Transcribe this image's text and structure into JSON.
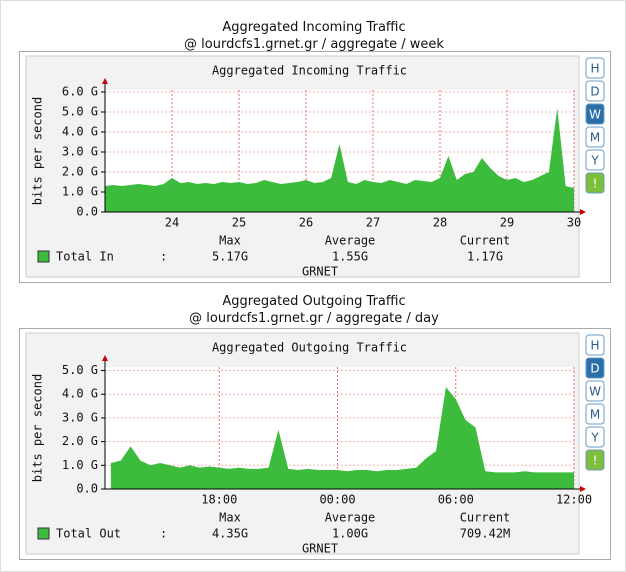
{
  "chart_data": [
    {
      "type": "area",
      "heading": "Aggregated Incoming Traffic",
      "subheading": "@ lourdcfs1.grnet.gr / aggregate / week",
      "title": "Aggregated Incoming Traffic",
      "ylabel": "bits per second",
      "x": [
        23.0,
        23.125,
        23.25,
        23.375,
        23.5,
        23.625,
        23.75,
        23.875,
        24.0,
        24.125,
        24.25,
        24.375,
        24.5,
        24.625,
        24.75,
        24.875,
        25.0,
        25.125,
        25.25,
        25.375,
        25.5,
        25.625,
        25.75,
        25.875,
        26.0,
        26.125,
        26.25,
        26.375,
        26.5,
        26.625,
        26.75,
        26.875,
        27.0,
        27.125,
        27.25,
        27.375,
        27.5,
        27.625,
        27.75,
        27.875,
        28.0,
        28.125,
        28.25,
        28.375,
        28.5,
        28.625,
        28.75,
        28.875,
        29.0,
        29.125,
        29.25,
        29.375,
        29.5,
        29.625,
        29.75,
        29.875,
        30.0
      ],
      "xlim": [
        23,
        30
      ],
      "xticks": [
        24,
        25,
        26,
        27,
        28,
        29,
        30
      ],
      "ylim": [
        0,
        6.1
      ],
      "yticks": [
        {
          "value": 0,
          "label": "0.0"
        },
        {
          "value": 1,
          "label": "1.0 G"
        },
        {
          "value": 2,
          "label": "2.0 G"
        },
        {
          "value": 3,
          "label": "3.0 G"
        },
        {
          "value": 4,
          "label": "4.0 G"
        },
        {
          "value": 5,
          "label": "5.0 G"
        },
        {
          "value": 6,
          "label": "6.0 G"
        }
      ],
      "grid": true,
      "series": [
        {
          "name": "Total In",
          "color": "#3dbb3d",
          "values": [
            1.3,
            1.35,
            1.3,
            1.35,
            1.4,
            1.35,
            1.3,
            1.4,
            1.7,
            1.45,
            1.5,
            1.4,
            1.45,
            1.4,
            1.5,
            1.45,
            1.5,
            1.4,
            1.45,
            1.6,
            1.5,
            1.4,
            1.45,
            1.5,
            1.6,
            1.45,
            1.5,
            1.7,
            3.4,
            1.5,
            1.4,
            1.6,
            1.5,
            1.45,
            1.6,
            1.5,
            1.4,
            1.6,
            1.55,
            1.5,
            1.7,
            2.8,
            1.6,
            1.9,
            2.0,
            2.7,
            2.2,
            1.8,
            1.6,
            1.7,
            1.5,
            1.6,
            1.8,
            2.0,
            5.2,
            1.3,
            1.2
          ]
        }
      ],
      "legend_separator": ":",
      "stats": {
        "headers": [
          "Max",
          "Average",
          "Current"
        ],
        "values": [
          "5.17G",
          "1.55G",
          "1.17G"
        ]
      },
      "footer": "GRNET",
      "buttons": [
        "H",
        "D",
        "W",
        "M",
        "Y",
        "!"
      ],
      "active_button": "W"
    },
    {
      "type": "area",
      "heading": "Aggregated Outgoing Traffic",
      "subheading": "@ lourdcfs1.grnet.gr / aggregate / day",
      "title": "Aggregated Outgoing Traffic",
      "ylabel": "bits per second",
      "x": [
        12.5,
        13,
        13.5,
        14,
        14.5,
        15,
        15.5,
        16,
        16.5,
        17,
        17.5,
        18,
        18.5,
        19,
        19.5,
        20,
        20.5,
        21,
        21.5,
        22,
        22.5,
        23,
        23.5,
        24,
        24.5,
        25,
        25.5,
        26,
        26.5,
        27,
        27.5,
        28,
        28.5,
        29,
        29.5,
        30,
        30.5,
        31,
        31.5,
        32,
        32.5,
        33,
        33.5,
        34,
        34.5,
        35,
        35.5,
        36
      ],
      "xlim": [
        12.2,
        36
      ],
      "xticks": [
        {
          "value": 18,
          "label": "18:00"
        },
        {
          "value": 24,
          "label": "00:00"
        },
        {
          "value": 30,
          "label": "06:00"
        },
        {
          "value": 36,
          "label": "12:00"
        }
      ],
      "ylim": [
        0,
        5.15
      ],
      "yticks": [
        {
          "value": 0,
          "label": "0.0"
        },
        {
          "value": 1,
          "label": "1.0 G"
        },
        {
          "value": 2,
          "label": "2.0 G"
        },
        {
          "value": 3,
          "label": "3.0 G"
        },
        {
          "value": 4,
          "label": "4.0 G"
        },
        {
          "value": 5,
          "label": "5.0 G"
        }
      ],
      "grid": true,
      "series": [
        {
          "name": "Total Out",
          "color": "#3dbb3d",
          "values": [
            1.1,
            1.2,
            1.8,
            1.2,
            1.0,
            1.1,
            1.0,
            0.9,
            1.0,
            0.9,
            0.95,
            0.9,
            0.85,
            0.9,
            0.85,
            0.85,
            0.9,
            2.5,
            0.85,
            0.8,
            0.85,
            0.8,
            0.8,
            0.8,
            0.75,
            0.8,
            0.8,
            0.75,
            0.8,
            0.8,
            0.85,
            0.9,
            1.3,
            1.6,
            4.3,
            3.8,
            2.9,
            2.6,
            0.75,
            0.7,
            0.7,
            0.7,
            0.75,
            0.7,
            0.7,
            0.7,
            0.7,
            0.7
          ]
        }
      ],
      "legend_separator": ":",
      "stats": {
        "headers": [
          "Max",
          "Average",
          "Current"
        ],
        "values": [
          "4.35G",
          "1.00G",
          "709.42M"
        ]
      },
      "footer": "GRNET",
      "buttons": [
        "H",
        "D",
        "W",
        "M",
        "Y",
        "!"
      ],
      "active_button": "D"
    }
  ]
}
